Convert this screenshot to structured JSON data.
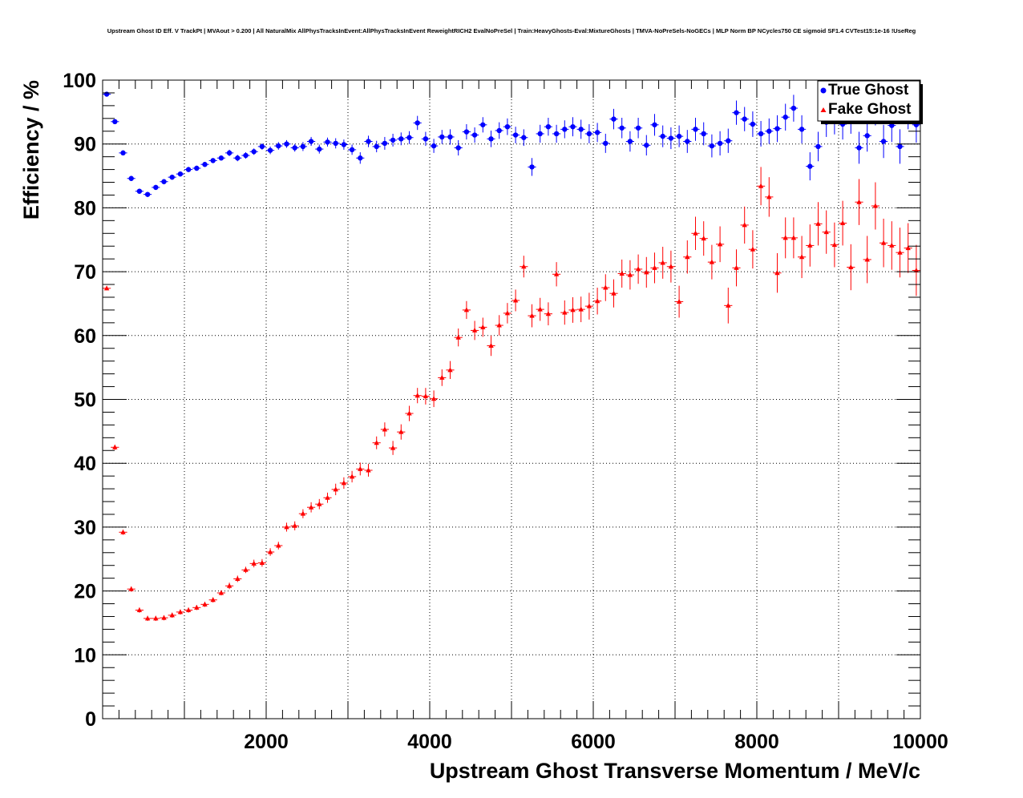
{
  "title": "Upstream Ghost ID Eff. V TrackPt | MVAout > 0.200 | All NaturalMix AllPhysTracksInEvent:AllPhysTracksInEvent ReweightRICH2 EvalNoPreSel | Train:HeavyGhosts-Eval:MixtureGhosts | TMVA-NoPreSels-NoGECs | MLP Norm BP NCycles750 CE sigmoid SF1.4 CVTest15:1e-16 !UseReg",
  "colors": {
    "true_ghost": "#0000ff",
    "fake_ghost": "#ff0000",
    "grid": "#000000"
  },
  "chart_data": {
    "type": "scatter",
    "title": "Upstream Ghost ID Eff. V TrackPt | MVAout > 0.200 | All NaturalMix AllPhysTracksInEvent:AllPhysTracksInEvent ReweightRICH2 EvalNoPreSel | Train:HeavyGhosts-Eval:MixtureGhosts | TMVA-NoPreSels-NoGECs | MLP Norm BP NCycles750 CE sigmoid SF1.4 CVTest15:1e-16 !UseReg",
    "xlabel": "Upstream Ghost Transverse Momentum / MeV/c",
    "ylabel": "Efficiency / %",
    "xlim": [
      0,
      10000
    ],
    "ylim": [
      0,
      100
    ],
    "x_ticks": [
      2000,
      4000,
      6000,
      8000,
      10000
    ],
    "y_ticks": [
      0,
      10,
      20,
      30,
      40,
      50,
      60,
      70,
      80,
      90,
      100
    ],
    "grid": true,
    "legend_position": "top-right",
    "bin_width": 100,
    "series": [
      {
        "name": "True Ghost",
        "color": "#0000ff",
        "marker": "circle",
        "x": [
          50,
          150,
          250,
          350,
          450,
          550,
          650,
          750,
          850,
          950,
          1050,
          1150,
          1250,
          1350,
          1450,
          1550,
          1650,
          1750,
          1850,
          1950,
          2050,
          2150,
          2250,
          2350,
          2450,
          2550,
          2650,
          2750,
          2850,
          2950,
          3050,
          3150,
          3250,
          3350,
          3450,
          3550,
          3650,
          3750,
          3850,
          3950,
          4050,
          4150,
          4250,
          4350,
          4450,
          4550,
          4650,
          4750,
          4850,
          4950,
          5050,
          5150,
          5250,
          5350,
          5450,
          5550,
          5650,
          5750,
          5850,
          5950,
          6050,
          6150,
          6250,
          6350,
          6450,
          6550,
          6650,
          6750,
          6850,
          6950,
          7050,
          7150,
          7250,
          7350,
          7450,
          7550,
          7650,
          7750,
          7850,
          7950,
          8050,
          8150,
          8250,
          8350,
          8450,
          8550,
          8650,
          8750,
          8850,
          8950,
          9050,
          9150,
          9250,
          9350,
          9450,
          9550,
          9650,
          9750,
          9850,
          9950
        ],
        "y": [
          97.8,
          93.5,
          88.6,
          84.6,
          82.6,
          82.1,
          83.2,
          84.1,
          84.8,
          85.3,
          86.0,
          86.2,
          86.8,
          87.4,
          87.8,
          88.6,
          87.8,
          88.2,
          88.8,
          89.6,
          89.0,
          89.7,
          90.0,
          89.4,
          89.6,
          90.4,
          89.2,
          90.3,
          90.1,
          89.9,
          89.1,
          87.8,
          90.4,
          89.6,
          90.1,
          90.6,
          90.8,
          91.0,
          93.3,
          90.8,
          89.7,
          91.1,
          91.1,
          89.4,
          91.9,
          91.4,
          93.0,
          90.8,
          92.1,
          92.7,
          91.4,
          91.0,
          86.4,
          91.6,
          92.7,
          91.6,
          92.3,
          92.7,
          92.3,
          91.6,
          91.8,
          90.1,
          93.9,
          92.5,
          90.4,
          92.5,
          89.8,
          93.0,
          91.2,
          90.9,
          91.2,
          90.4,
          92.3,
          91.6,
          89.7,
          90.1,
          90.5,
          94.9,
          93.9,
          93.1,
          91.6,
          92.0,
          92.4,
          94.2,
          95.6,
          92.3,
          86.5,
          89.6,
          93.4,
          93.8,
          93.1,
          94.0,
          89.4,
          91.3,
          95.4,
          90.4,
          92.9,
          89.6,
          95.0,
          93.0
        ],
        "y_err": [
          0.3,
          0.4,
          0.4,
          0.4,
          0.4,
          0.4,
          0.4,
          0.4,
          0.4,
          0.4,
          0.4,
          0.4,
          0.4,
          0.4,
          0.4,
          0.5,
          0.5,
          0.5,
          0.5,
          0.5,
          0.6,
          0.6,
          0.6,
          0.6,
          0.7,
          0.7,
          0.7,
          0.7,
          0.8,
          0.8,
          0.8,
          0.9,
          0.9,
          0.9,
          1.0,
          1.0,
          1.0,
          1.0,
          1.1,
          1.1,
          1.1,
          1.1,
          1.2,
          1.2,
          1.2,
          1.2,
          1.2,
          1.3,
          1.3,
          1.3,
          1.3,
          1.3,
          1.4,
          1.4,
          1.4,
          1.4,
          1.4,
          1.5,
          1.5,
          1.5,
          1.5,
          1.5,
          1.6,
          1.6,
          1.6,
          1.6,
          1.6,
          1.7,
          1.7,
          1.7,
          1.7,
          1.8,
          1.8,
          1.8,
          1.8,
          1.9,
          1.9,
          1.9,
          1.9,
          2.0,
          2.0,
          2.0,
          2.1,
          2.1,
          2.1,
          2.2,
          2.2,
          2.3,
          2.3,
          2.3,
          2.4,
          2.4,
          2.5,
          2.5,
          2.5,
          2.6,
          2.6,
          2.7,
          2.7,
          2.8
        ]
      },
      {
        "name": "Fake Ghost",
        "color": "#ff0000",
        "marker": "triangle",
        "x": [
          50,
          150,
          250,
          350,
          450,
          550,
          650,
          750,
          850,
          950,
          1050,
          1150,
          1250,
          1350,
          1450,
          1550,
          1650,
          1750,
          1850,
          1950,
          2050,
          2150,
          2250,
          2350,
          2450,
          2550,
          2650,
          2750,
          2850,
          2950,
          3050,
          3150,
          3250,
          3350,
          3450,
          3550,
          3650,
          3750,
          3850,
          3950,
          4050,
          4150,
          4250,
          4350,
          4450,
          4550,
          4650,
          4750,
          4850,
          4950,
          5050,
          5150,
          5250,
          5350,
          5450,
          5550,
          5650,
          5750,
          5850,
          5950,
          6050,
          6150,
          6250,
          6350,
          6450,
          6550,
          6650,
          6750,
          6850,
          6950,
          7050,
          7150,
          7250,
          7350,
          7450,
          7550,
          7650,
          7750,
          7850,
          7950,
          8050,
          8150,
          8250,
          8350,
          8450,
          8550,
          8650,
          8750,
          8850,
          8950,
          9050,
          9150,
          9250,
          9350,
          9450,
          9550,
          9650,
          9750,
          9850,
          9950
        ],
        "y": [
          67.4,
          42.5,
          29.2,
          20.3,
          17.0,
          15.7,
          15.7,
          15.8,
          16.2,
          16.7,
          17.0,
          17.4,
          17.9,
          18.6,
          19.7,
          20.8,
          21.9,
          23.3,
          24.3,
          24.4,
          26.1,
          27.1,
          30.0,
          30.2,
          32.1,
          33.1,
          33.6,
          34.6,
          35.9,
          36.9,
          37.9,
          39.1,
          38.9,
          43.2,
          45.3,
          42.4,
          44.9,
          47.8,
          50.6,
          50.5,
          50.1,
          53.4,
          54.6,
          59.7,
          64.0,
          60.8,
          61.3,
          58.4,
          61.6,
          63.5,
          65.5,
          70.8,
          63.1,
          64.1,
          63.4,
          69.6,
          63.6,
          64.0,
          64.1,
          64.6,
          65.4,
          67.5,
          66.6,
          69.7,
          69.5,
          70.4,
          69.9,
          70.6,
          71.4,
          70.8,
          65.3,
          72.3,
          76.0,
          75.2,
          71.5,
          74.3,
          64.7,
          70.6,
          77.3,
          73.5,
          83.4,
          81.7,
          69.8,
          75.3,
          75.3,
          72.3,
          74.1,
          77.5,
          76.2,
          74.2,
          77.6,
          70.7,
          80.9,
          71.9,
          80.3,
          74.5,
          74.1,
          73.0,
          73.7,
          70.2
        ],
        "y_err": [
          0.3,
          0.4,
          0.4,
          0.4,
          0.4,
          0.4,
          0.4,
          0.4,
          0.4,
          0.4,
          0.4,
          0.4,
          0.4,
          0.4,
          0.4,
          0.5,
          0.5,
          0.5,
          0.6,
          0.6,
          0.6,
          0.6,
          0.7,
          0.7,
          0.7,
          0.8,
          0.8,
          0.8,
          0.9,
          0.9,
          0.9,
          1.0,
          1.0,
          1.0,
          1.1,
          1.1,
          1.2,
          1.2,
          1.2,
          1.3,
          1.3,
          1.3,
          1.4,
          1.4,
          1.4,
          1.5,
          1.5,
          1.6,
          1.6,
          1.6,
          1.7,
          1.7,
          1.8,
          1.8,
          1.8,
          1.9,
          1.9,
          2.0,
          2.0,
          2.1,
          2.1,
          2.1,
          2.2,
          2.2,
          2.3,
          2.3,
          2.4,
          2.4,
          2.5,
          2.5,
          2.5,
          2.6,
          2.6,
          2.7,
          2.7,
          2.8,
          2.8,
          2.9,
          2.9,
          3.0,
          3.0,
          3.1,
          3.1,
          3.2,
          3.2,
          3.3,
          3.3,
          3.4,
          3.4,
          3.5,
          3.5,
          3.6,
          3.6,
          3.7,
          3.7,
          3.8,
          3.8,
          3.9,
          3.9,
          4.0
        ]
      }
    ]
  }
}
